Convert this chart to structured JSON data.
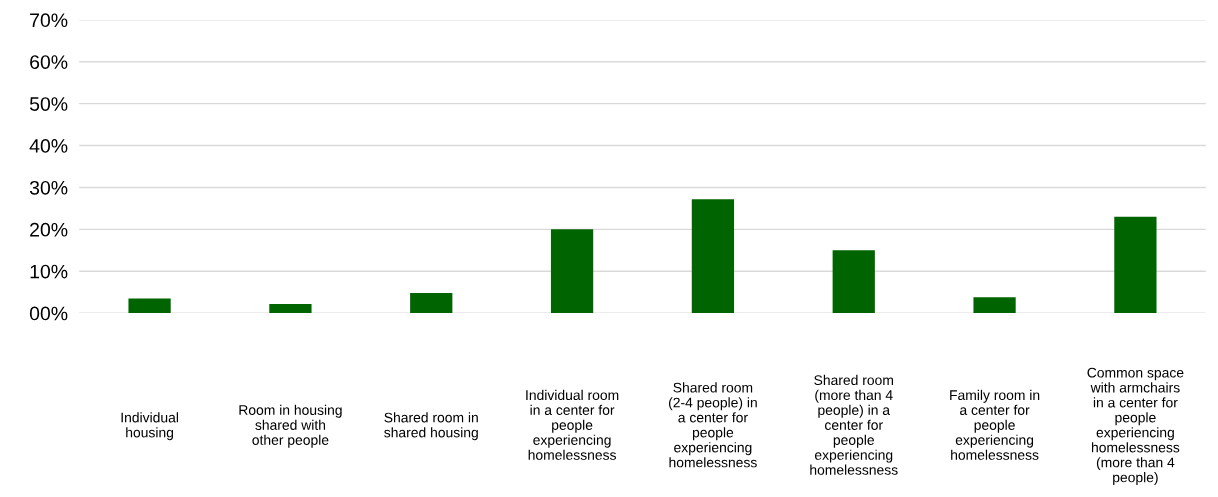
{
  "chart_data": {
    "type": "bar",
    "categories": [
      "Individual housing",
      "Room in housing shared with other people",
      "Shared room in shared housing",
      "Individual room in a center for people experiencing homelessness",
      "Shared room (2-4 people) in a center for people experiencing homelessness",
      "Shared room (more than 4 people) in a center for people experiencing homelessness",
      "Family room in a center for people experiencing homelessness",
      "Common space with armchairs in a center for people experiencing homelessness (more than 4 people)"
    ],
    "values": [
      3.5,
      2.2,
      4.8,
      20,
      27.2,
      15,
      3.8,
      23
    ],
    "color": "#006400",
    "ylim": [
      0,
      70
    ],
    "yticks": [
      {
        "value": 0,
        "label": "00%"
      },
      {
        "value": 10,
        "label": "10%"
      },
      {
        "value": 20,
        "label": "20%"
      },
      {
        "value": 30,
        "label": "30%"
      },
      {
        "value": 40,
        "label": "40%"
      },
      {
        "value": 50,
        "label": "50%"
      },
      {
        "value": 60,
        "label": "60%"
      },
      {
        "value": 70,
        "label": "70%"
      }
    ],
    "grid": "y",
    "legend": false
  }
}
